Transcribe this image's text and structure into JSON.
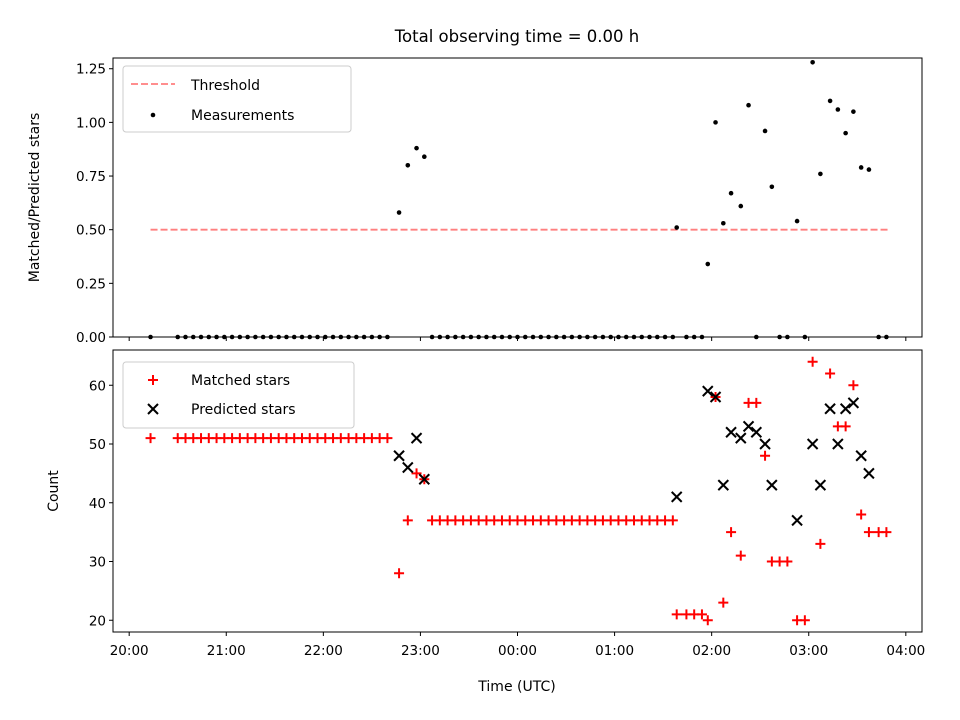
{
  "title": "Total observing time = 0.00 h",
  "chart_data": [
    {
      "type": "scatter",
      "panel": "top",
      "ylabel": "Matched/Predicted stars",
      "xlim": [
        19.8333,
        28.1667
      ],
      "ylim": [
        0,
        1.3
      ],
      "yticks": [
        0,
        0.25,
        0.5,
        0.75,
        1.0,
        1.25
      ],
      "ytick_labels": [
        "0.00",
        "0.25",
        "0.50",
        "0.75",
        "1.00",
        "1.25"
      ],
      "grid": false,
      "legend_position": "top-left",
      "threshold": {
        "name": "Threshold",
        "value": 0.5,
        "x_range": [
          20.22,
          27.82
        ],
        "color": "#ff7f7f"
      },
      "series": [
        {
          "name": "Measurements",
          "color": "#000000",
          "marker": "dot",
          "x": [
            20.22,
            20.5,
            20.58,
            20.66,
            20.74,
            20.82,
            20.9,
            20.98,
            21.06,
            21.14,
            21.22,
            21.3,
            21.38,
            21.46,
            21.54,
            21.62,
            21.7,
            21.78,
            21.86,
            21.94,
            22.02,
            22.1,
            22.18,
            22.26,
            22.34,
            22.42,
            22.5,
            22.58,
            22.66,
            22.78,
            22.87,
            22.96,
            23.04,
            23.12,
            23.2,
            23.28,
            23.36,
            23.44,
            23.52,
            23.6,
            23.68,
            23.76,
            23.84,
            23.92,
            24.0,
            24.08,
            24.16,
            24.24,
            24.32,
            24.4,
            24.48,
            24.56,
            24.64,
            24.72,
            24.8,
            24.88,
            24.96,
            25.04,
            25.12,
            25.2,
            25.28,
            25.36,
            25.44,
            25.52,
            25.6,
            25.64,
            25.74,
            25.82,
            25.9,
            25.96,
            26.04,
            26.12,
            26.2,
            26.3,
            26.38,
            26.46,
            26.55,
            26.62,
            26.7,
            26.78,
            26.88,
            26.96,
            27.04,
            27.12,
            27.22,
            27.3,
            27.38,
            27.46,
            27.54,
            27.62,
            27.72,
            27.8
          ],
          "y": [
            0,
            0,
            0,
            0,
            0,
            0,
            0,
            0,
            0,
            0,
            0,
            0,
            0,
            0,
            0,
            0,
            0,
            0,
            0,
            0,
            0,
            0,
            0,
            0,
            0,
            0,
            0,
            0,
            0,
            0.58,
            0.8,
            0.88,
            0.84,
            0,
            0,
            0,
            0,
            0,
            0,
            0,
            0,
            0,
            0,
            0,
            0,
            0,
            0,
            0,
            0,
            0,
            0,
            0,
            0,
            0,
            0,
            0,
            0,
            0,
            0,
            0,
            0,
            0,
            0,
            0,
            0,
            0.51,
            0,
            0,
            0,
            0.34,
            1.0,
            0.53,
            0.67,
            0.61,
            1.08,
            0,
            0.96,
            0.7,
            0,
            0,
            0.54,
            0,
            1.28,
            0.76,
            1.1,
            1.06,
            0.95,
            1.05,
            0.79,
            0.78,
            0,
            0
          ]
        }
      ]
    },
    {
      "type": "scatter",
      "panel": "bottom",
      "xlabel": "Time (UTC)",
      "ylabel": "Count",
      "xlim": [
        19.8333,
        28.1667
      ],
      "ylim": [
        18,
        66
      ],
      "yticks": [
        20,
        30,
        40,
        50,
        60
      ],
      "ytick_labels": [
        "20",
        "30",
        "40",
        "50",
        "60"
      ],
      "xticks": [
        20,
        21,
        22,
        23,
        24,
        25,
        26,
        27,
        28
      ],
      "xtick_labels": [
        "20:00",
        "21:00",
        "22:00",
        "23:00",
        "00:00",
        "01:00",
        "02:00",
        "03:00",
        "04:00"
      ],
      "grid": false,
      "legend_position": "top-left",
      "series": [
        {
          "name": "Matched stars",
          "color": "#ff0000",
          "marker": "plus",
          "x": [
            20.22,
            20.5,
            20.58,
            20.66,
            20.74,
            20.82,
            20.9,
            20.98,
            21.06,
            21.14,
            21.22,
            21.3,
            21.38,
            21.46,
            21.54,
            21.62,
            21.7,
            21.78,
            21.86,
            21.94,
            22.02,
            22.1,
            22.18,
            22.26,
            22.34,
            22.42,
            22.5,
            22.58,
            22.66,
            22.78,
            22.87,
            22.96,
            23.04,
            23.12,
            23.2,
            23.28,
            23.36,
            23.44,
            23.52,
            23.6,
            23.68,
            23.76,
            23.84,
            23.92,
            24.0,
            24.08,
            24.16,
            24.24,
            24.32,
            24.4,
            24.48,
            24.56,
            24.64,
            24.72,
            24.8,
            24.88,
            24.96,
            25.04,
            25.12,
            25.2,
            25.28,
            25.36,
            25.44,
            25.52,
            25.6,
            25.64,
            25.74,
            25.82,
            25.9,
            25.96,
            26.04,
            26.12,
            26.2,
            26.3,
            26.38,
            26.46,
            26.55,
            26.62,
            26.7,
            26.78,
            26.88,
            26.96,
            27.04,
            27.12,
            27.22,
            27.3,
            27.38,
            27.46,
            27.54,
            27.62,
            27.72,
            27.8
          ],
          "y": [
            51,
            51,
            51,
            51,
            51,
            51,
            51,
            51,
            51,
            51,
            51,
            51,
            51,
            51,
            51,
            51,
            51,
            51,
            51,
            51,
            51,
            51,
            51,
            51,
            51,
            51,
            51,
            51,
            51,
            28,
            37,
            45,
            44,
            37,
            37,
            37,
            37,
            37,
            37,
            37,
            37,
            37,
            37,
            37,
            37,
            37,
            37,
            37,
            37,
            37,
            37,
            37,
            37,
            37,
            37,
            37,
            37,
            37,
            37,
            37,
            37,
            37,
            37,
            37,
            37,
            21,
            21,
            21,
            21,
            20,
            58,
            23,
            35,
            31,
            57,
            57,
            48,
            30,
            30,
            30,
            20,
            20,
            64,
            33,
            62,
            53,
            53,
            60,
            38,
            35,
            35,
            35
          ]
        },
        {
          "name": "Predicted stars",
          "color": "#000000",
          "marker": "x",
          "x": [
            22.78,
            22.87,
            22.96,
            23.04,
            25.64,
            25.96,
            26.04,
            26.12,
            26.2,
            26.3,
            26.38,
            26.46,
            26.55,
            26.62,
            26.88,
            27.04,
            27.12,
            27.22,
            27.3,
            27.38,
            27.46,
            27.54,
            27.62
          ],
          "y": [
            48,
            46,
            51,
            44,
            41,
            59,
            58,
            43,
            52,
            51,
            53,
            52,
            50,
            43,
            37,
            50,
            43,
            56,
            50,
            56,
            57,
            48,
            45
          ]
        }
      ]
    }
  ]
}
